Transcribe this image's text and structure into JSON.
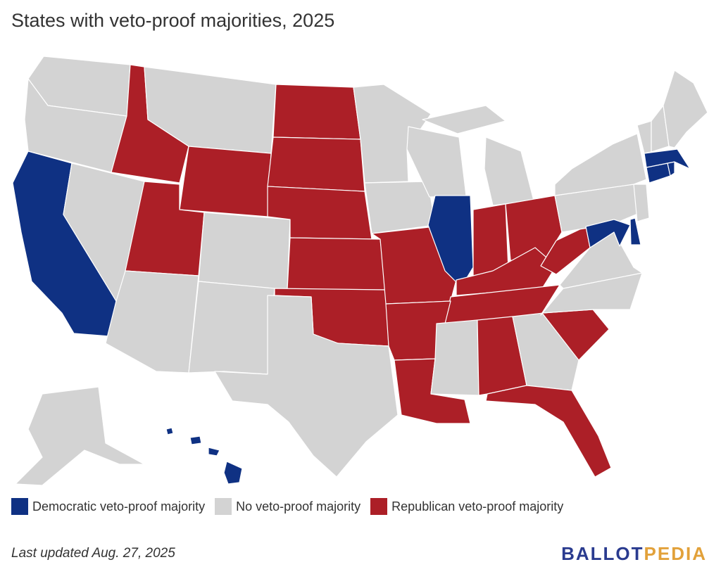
{
  "title": "States with veto-proof majorities, 2025",
  "colors": {
    "dem": "#0f3183",
    "none": "#d3d3d3",
    "rep": "#ac1f27"
  },
  "legend": [
    {
      "label": "Democratic veto-proof majority",
      "color": "#0f3183"
    },
    {
      "label": "No veto-proof majority",
      "color": "#d3d3d3"
    },
    {
      "label": "Republican veto-proof majority",
      "color": "#ac1f27"
    }
  ],
  "states": {
    "democratic": [
      "CA",
      "IL",
      "MD",
      "DE",
      "MA",
      "CT",
      "RI",
      "HI"
    ],
    "republican": [
      "ID",
      "UT",
      "WY",
      "ND",
      "SD",
      "NE",
      "KS",
      "OK",
      "MO",
      "AR",
      "LA",
      "IN",
      "OH",
      "KY",
      "TN",
      "WV",
      "AL",
      "SC",
      "FL"
    ],
    "none": [
      "WA",
      "OR",
      "NV",
      "AZ",
      "MT",
      "CO",
      "NM",
      "TX",
      "MN",
      "IA",
      "WI",
      "MI",
      "MS",
      "GA",
      "NC",
      "VA",
      "PA",
      "NY",
      "NJ",
      "VT",
      "NH",
      "ME",
      "AK"
    ]
  },
  "footer": "Last updated Aug. 27, 2025",
  "logo": {
    "part1": "BALLOT",
    "part2": "PEDIA"
  }
}
